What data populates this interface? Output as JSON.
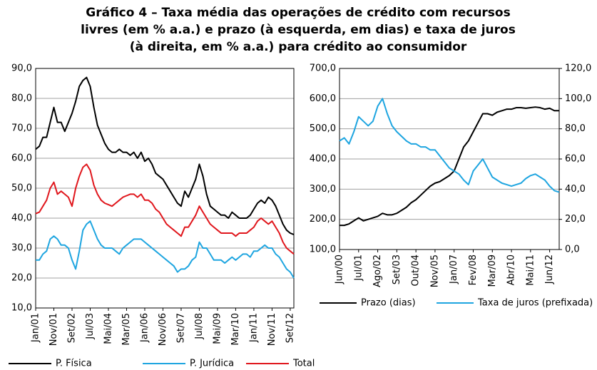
{
  "title": [
    "Gráfico 4 – Taxa média das operações de crédito com recursos",
    "livres (em % a.a.) e prazo (à esquerda, em dias) e taxa de juros",
    "(à direita, em % a.a.) para crédito ao consumidor"
  ],
  "chart_data": [
    {
      "type": "line",
      "categories": [
        "Jan/01",
        null,
        null,
        null,
        null,
        "Nov/01",
        null,
        null,
        null,
        null,
        "Set/02",
        null,
        null,
        null,
        null,
        "Jul/03",
        null,
        null,
        null,
        null,
        "Mai/04",
        null,
        null,
        null,
        null,
        "Mar/05",
        null,
        null,
        null,
        null,
        "Jan/06",
        null,
        null,
        null,
        null,
        "Nov/06",
        null,
        null,
        null,
        null,
        "Set/07",
        null,
        null,
        null,
        null,
        "Jul/08",
        null,
        null,
        null,
        null,
        "Mai/09",
        null,
        null,
        null,
        null,
        "Mar/10",
        null,
        null,
        null,
        null,
        "Jan/11",
        null,
        null,
        null,
        null,
        "Nov/11",
        null,
        null,
        null,
        null,
        "Set/12",
        null
      ],
      "ylim": [
        10,
        90
      ],
      "yticks": [
        {
          "value": 10,
          "label": "10,0"
        },
        {
          "value": 20,
          "label": "20,0"
        },
        {
          "value": 30,
          "label": "30,0"
        },
        {
          "value": 40,
          "label": "40,0"
        },
        {
          "value": 50,
          "label": "50,0"
        },
        {
          "value": 60,
          "label": "60,0"
        },
        {
          "value": 70,
          "label": "70,0"
        },
        {
          "value": 80,
          "label": "80,0"
        },
        {
          "value": 90,
          "label": "90,0"
        }
      ],
      "grid": true,
      "series": [
        {
          "name": "P. Física",
          "color": "#000000",
          "values": [
            63,
            64,
            67,
            67,
            72,
            77,
            72,
            72,
            69,
            72,
            75,
            79,
            84,
            86,
            87,
            84,
            77,
            71,
            68,
            65,
            63,
            62,
            62,
            63,
            62,
            62,
            61,
            62,
            60,
            62,
            59,
            60,
            58,
            55,
            54,
            53,
            51,
            49,
            47,
            45,
            44,
            49,
            47,
            50,
            53,
            58,
            54,
            48,
            44,
            43,
            42,
            41,
            41,
            40,
            42,
            41,
            40,
            40,
            40,
            41,
            43,
            45,
            46,
            45,
            47,
            46,
            44,
            41,
            38,
            36,
            35,
            34.5
          ]
        },
        {
          "name": "P. Jurídica",
          "color": "#1ea5e0",
          "values": [
            26,
            26,
            28,
            29,
            33,
            34,
            33,
            31,
            31,
            30,
            26,
            23,
            29,
            36,
            38,
            39,
            36,
            33,
            31,
            30,
            30,
            30,
            29,
            28,
            30,
            31,
            32,
            33,
            33,
            33,
            32,
            31,
            30,
            29,
            28,
            27,
            26,
            25,
            24,
            22,
            23,
            23,
            24,
            26,
            27,
            32,
            30,
            30,
            28,
            26,
            26,
            26,
            25,
            26,
            27,
            26,
            27,
            28,
            28,
            27,
            29,
            29,
            30,
            31,
            30,
            30,
            28,
            27,
            25,
            23,
            22,
            20
          ]
        },
        {
          "name": "Total",
          "color": "#e0161c",
          "values": [
            41.5,
            42,
            44,
            46,
            50,
            52,
            48,
            49,
            48,
            47,
            44,
            50,
            54,
            57,
            58,
            56,
            51,
            48,
            46,
            45,
            44.5,
            44,
            45,
            46,
            47,
            47.5,
            48,
            48,
            47,
            48,
            46,
            46,
            45,
            43,
            42,
            40,
            38,
            37,
            36,
            35,
            34,
            37,
            37,
            39,
            41,
            44,
            42,
            40,
            38,
            37,
            36,
            35,
            35,
            35,
            35,
            34,
            35,
            35,
            35,
            36,
            37,
            39,
            40,
            39,
            38,
            39,
            37,
            35,
            32,
            30,
            29,
            28
          ]
        }
      ]
    },
    {
      "type": "line",
      "categories": [
        "Jun/00",
        null,
        null,
        null,
        "Jul/01",
        null,
        null,
        null,
        "Ago/02",
        null,
        null,
        null,
        "Set/03",
        null,
        null,
        null,
        "Out/04",
        null,
        null,
        null,
        "Nov/05",
        null,
        null,
        null,
        "Jan/07",
        null,
        null,
        null,
        "Fev/08",
        null,
        null,
        null,
        "Mar/09",
        null,
        null,
        null,
        "Abr/10",
        null,
        null,
        null,
        "Mai/11",
        null,
        null,
        null,
        "Jun/12",
        null,
        null
      ],
      "ylim": [
        100,
        700
      ],
      "yticks": [
        {
          "value": 100,
          "label": "100,0"
        },
        {
          "value": 200,
          "label": "200,0"
        },
        {
          "value": 300,
          "label": "300,0"
        },
        {
          "value": 400,
          "label": "400,0"
        },
        {
          "value": 500,
          "label": "500,0"
        },
        {
          "value": 600,
          "label": "600,0"
        },
        {
          "value": 700,
          "label": "700,0"
        }
      ],
      "y2lim": [
        0,
        120
      ],
      "y2ticks": [
        {
          "value": 0,
          "label": "0,0"
        },
        {
          "value": 20,
          "label": "20,0"
        },
        {
          "value": 40,
          "label": "40,0"
        },
        {
          "value": 60,
          "label": "60,0"
        },
        {
          "value": 80,
          "label": "80,0"
        },
        {
          "value": 100,
          "label": "100,0"
        },
        {
          "value": 120,
          "label": "120,0"
        }
      ],
      "grid": true,
      "series": [
        {
          "name": "Prazo (dias)",
          "color": "#000000",
          "values": [
            180,
            180,
            185,
            195,
            205,
            195,
            200,
            205,
            210,
            220,
            215,
            215,
            220,
            230,
            240,
            255,
            265,
            280,
            295,
            310,
            320,
            325,
            335,
            345,
            360,
            400,
            440,
            460,
            490,
            520,
            550,
            550,
            545,
            555,
            560,
            565,
            565,
            570,
            570,
            568,
            570,
            572,
            570,
            565,
            568,
            560,
            560
          ]
        },
        {
          "name": "Taxa de juros (prefixada)",
          "color": "#1ea5e0",
          "axis": "y2",
          "values": [
            72,
            74,
            70,
            78,
            88,
            85,
            82,
            85,
            95,
            100,
            90,
            82,
            78,
            75,
            72,
            70,
            70,
            68,
            68,
            66,
            66,
            62,
            58,
            54,
            52,
            50,
            46,
            43,
            52,
            56,
            60,
            54,
            48,
            46,
            44,
            43,
            42,
            43,
            44,
            47,
            49,
            50,
            48,
            46,
            42,
            39,
            38
          ]
        }
      ]
    }
  ]
}
